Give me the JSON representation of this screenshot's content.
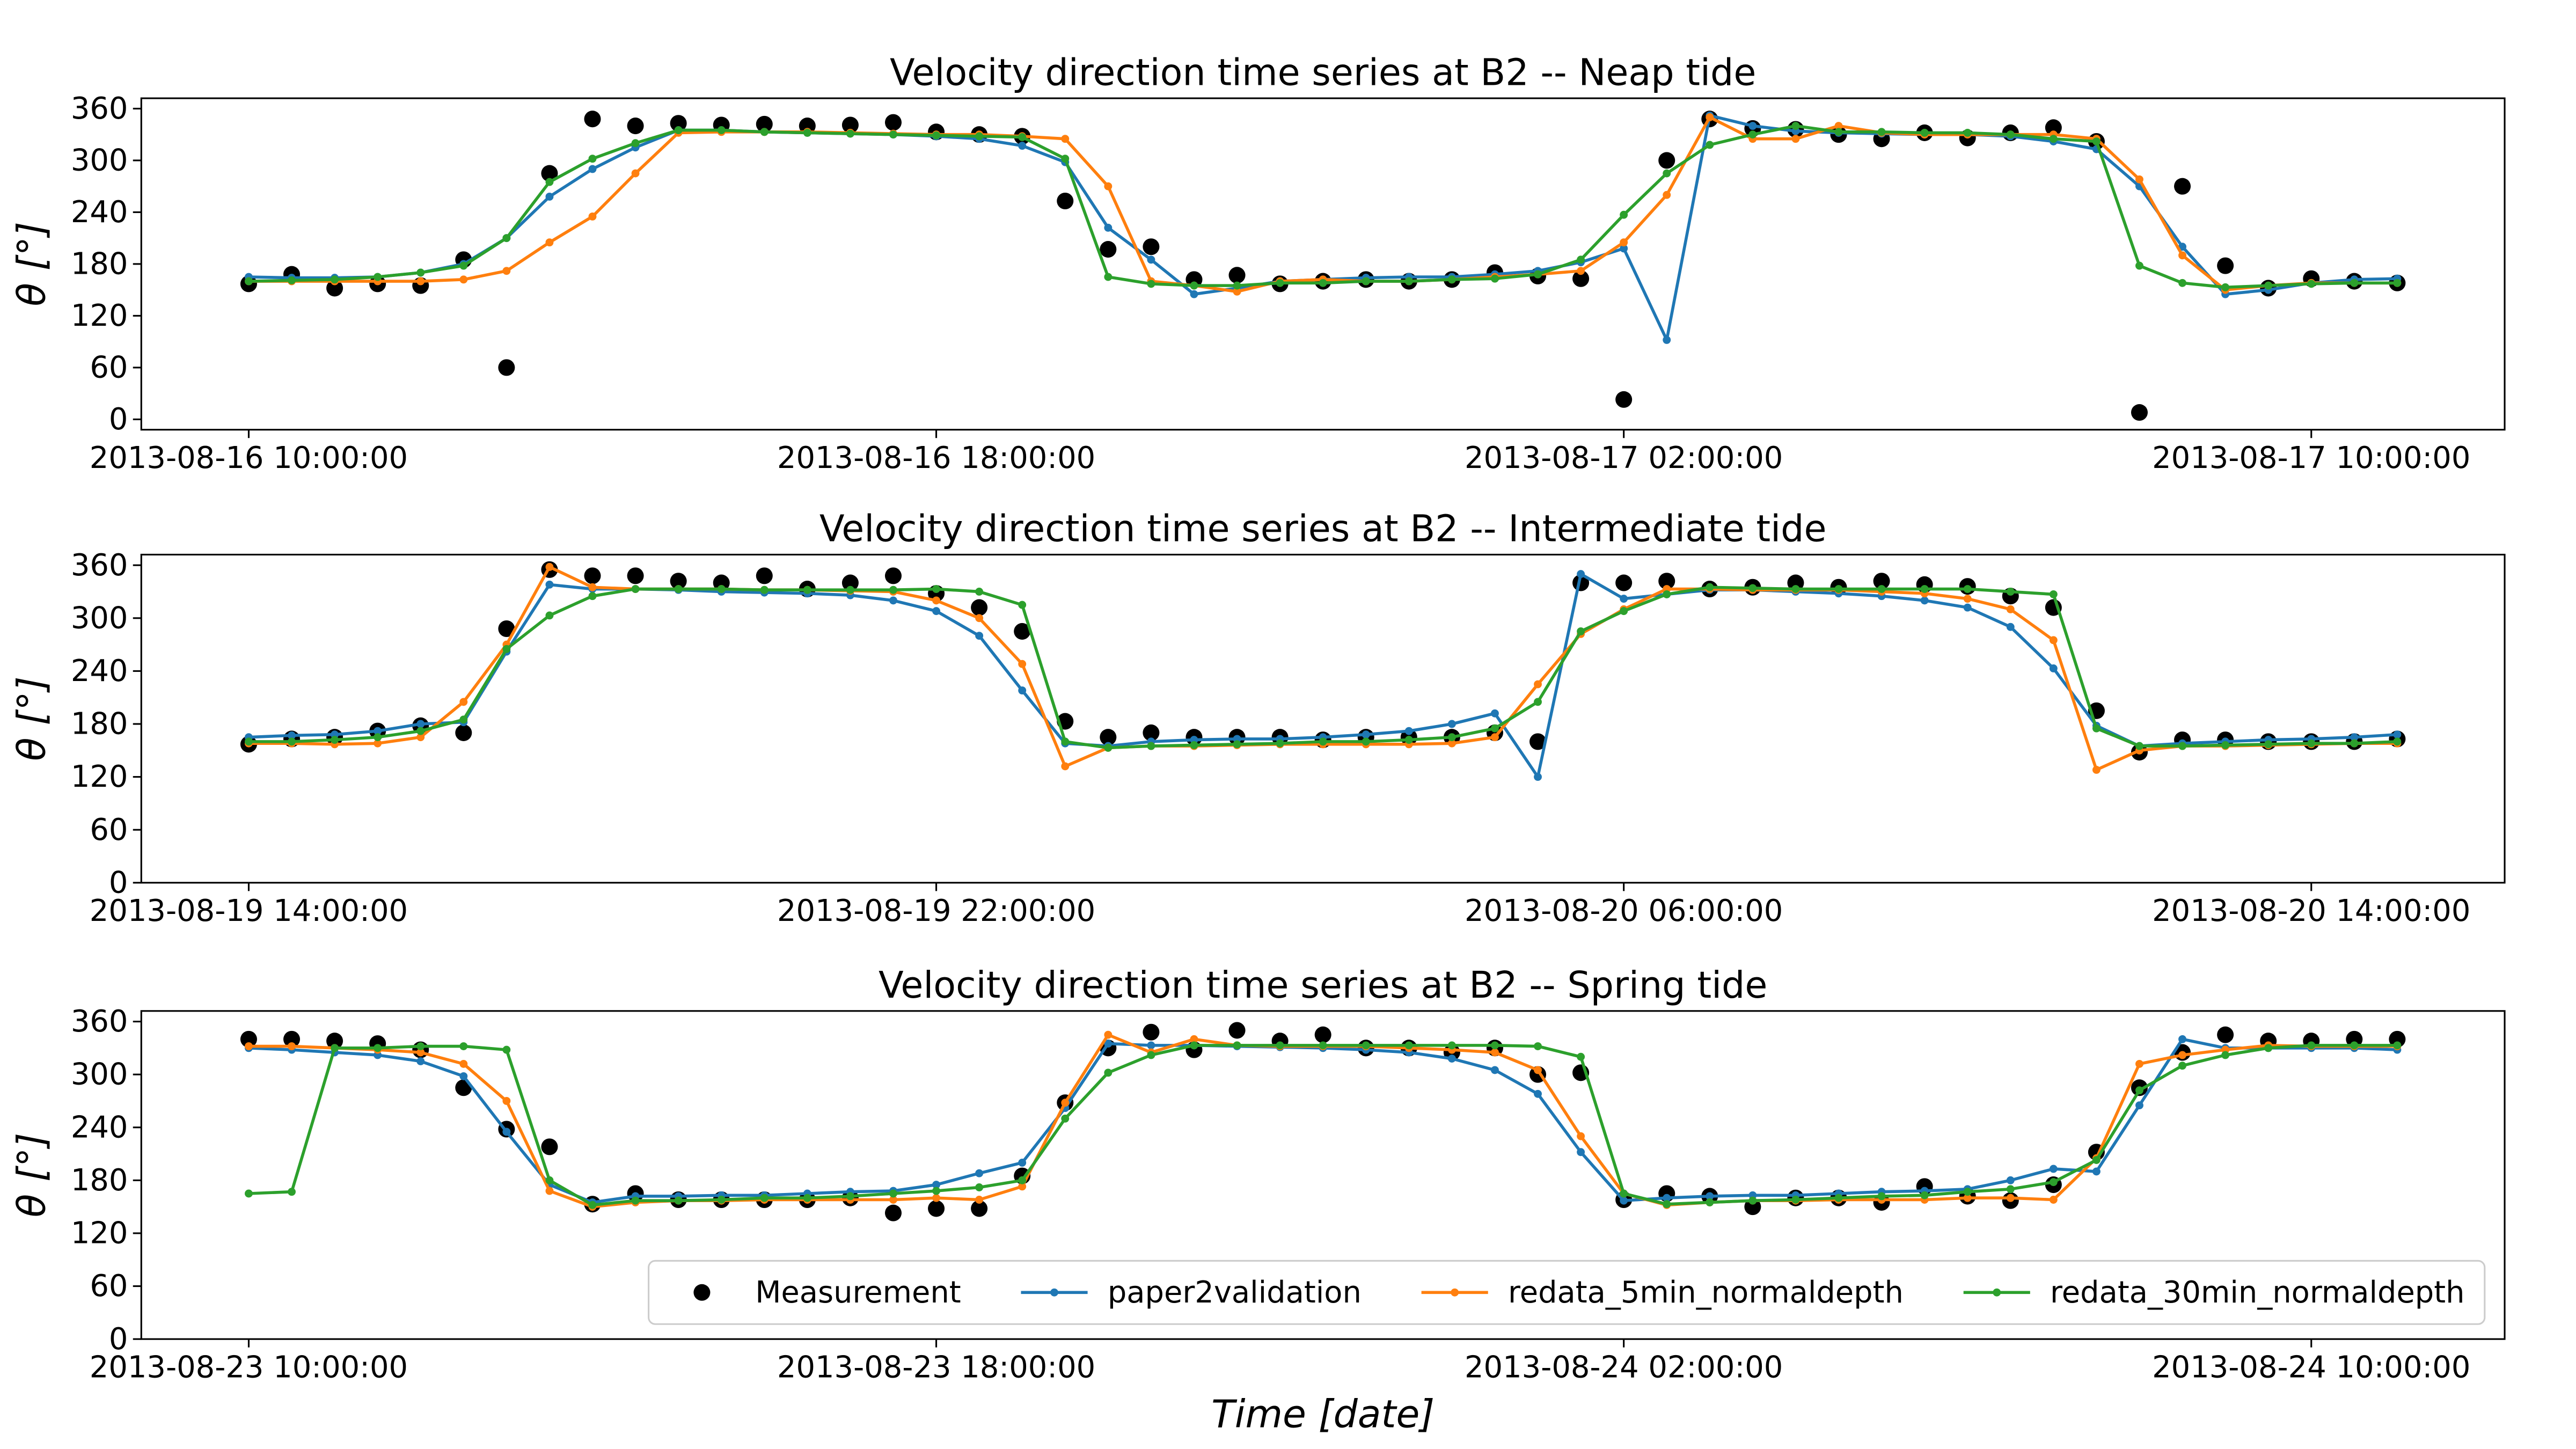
{
  "chart_data": [
    {
      "type": "line",
      "title": "Velocity direction time series at B2 -- Neap tide",
      "ylabel": "θ [°]",
      "xlim": [
        "2013-08-16 08:45:00",
        "2013-08-17 12:15:00"
      ],
      "xticks": [
        "2013-08-16 10:00:00",
        "2013-08-16 18:00:00",
        "2013-08-17 02:00:00",
        "2013-08-17 10:00:00"
      ],
      "ylim": [
        -12,
        372
      ],
      "yticks": [
        0,
        60,
        120,
        180,
        240,
        300,
        360
      ],
      "x": [
        "2013-08-16 10:00:00",
        "2013-08-16 10:30:00",
        "2013-08-16 11:00:00",
        "2013-08-16 11:30:00",
        "2013-08-16 12:00:00",
        "2013-08-16 12:30:00",
        "2013-08-16 13:00:00",
        "2013-08-16 13:30:00",
        "2013-08-16 14:00:00",
        "2013-08-16 14:30:00",
        "2013-08-16 15:00:00",
        "2013-08-16 15:30:00",
        "2013-08-16 16:00:00",
        "2013-08-16 16:30:00",
        "2013-08-16 17:00:00",
        "2013-08-16 17:30:00",
        "2013-08-16 18:00:00",
        "2013-08-16 18:30:00",
        "2013-08-16 19:00:00",
        "2013-08-16 19:30:00",
        "2013-08-16 20:00:00",
        "2013-08-16 20:30:00",
        "2013-08-16 21:00:00",
        "2013-08-16 21:30:00",
        "2013-08-16 22:00:00",
        "2013-08-16 22:30:00",
        "2013-08-16 23:00:00",
        "2013-08-16 23:30:00",
        "2013-08-17 00:00:00",
        "2013-08-17 00:30:00",
        "2013-08-17 01:00:00",
        "2013-08-17 01:30:00",
        "2013-08-17 02:00:00",
        "2013-08-17 02:30:00",
        "2013-08-17 03:00:00",
        "2013-08-17 03:30:00",
        "2013-08-17 04:00:00",
        "2013-08-17 04:30:00",
        "2013-08-17 05:00:00",
        "2013-08-17 05:30:00",
        "2013-08-17 06:00:00",
        "2013-08-17 06:30:00",
        "2013-08-17 07:00:00",
        "2013-08-17 07:30:00",
        "2013-08-17 08:00:00",
        "2013-08-17 08:30:00",
        "2013-08-17 09:00:00",
        "2013-08-17 09:30:00",
        "2013-08-17 10:00:00",
        "2013-08-17 10:30:00",
        "2013-08-17 11:00:00"
      ],
      "series": [
        {
          "name": "Measurement",
          "color": "#000000",
          "linestyle": "none",
          "values": [
            157,
            168,
            152,
            157,
            155,
            185,
            60,
            285,
            348,
            340,
            343,
            341,
            342,
            340,
            341,
            344,
            333,
            330,
            328,
            253,
            197,
            200,
            162,
            167,
            157,
            160,
            162,
            160,
            162,
            170,
            166,
            163,
            23,
            300,
            348,
            337,
            336,
            330,
            325,
            332,
            326,
            332,
            338,
            322,
            8,
            270,
            178,
            152,
            163,
            160,
            158
          ]
        },
        {
          "name": "paper2validation",
          "color": "#1f77b4",
          "linestyle": "solid",
          "values": [
            165,
            164,
            164,
            165,
            170,
            180,
            210,
            258,
            290,
            315,
            335,
            335,
            333,
            332,
            331,
            330,
            328,
            325,
            317,
            298,
            222,
            185,
            145,
            152,
            160,
            162,
            164,
            165,
            165,
            168,
            172,
            182,
            198,
            92,
            352,
            340,
            334,
            332,
            331,
            330,
            330,
            328,
            322,
            313,
            270,
            200,
            145,
            150,
            158,
            162,
            163
          ]
        },
        {
          "name": "redata_5min_normaldepth",
          "color": "#ff7f0e",
          "linestyle": "solid",
          "values": [
            160,
            160,
            160,
            160,
            160,
            162,
            172,
            205,
            235,
            285,
            332,
            333,
            333,
            333,
            332,
            331,
            330,
            330,
            328,
            325,
            270,
            160,
            155,
            148,
            160,
            162,
            160,
            160,
            162,
            165,
            168,
            172,
            205,
            260,
            350,
            325,
            325,
            340,
            332,
            330,
            330,
            330,
            330,
            325,
            278,
            190,
            150,
            155,
            158,
            158,
            158
          ]
        },
        {
          "name": "redata_30min_normaldepth",
          "color": "#2ca02c",
          "linestyle": "solid",
          "values": [
            160,
            161,
            162,
            165,
            170,
            178,
            210,
            275,
            302,
            320,
            335,
            335,
            333,
            332,
            331,
            330,
            329,
            328,
            327,
            302,
            165,
            157,
            155,
            155,
            158,
            158,
            160,
            160,
            162,
            163,
            168,
            185,
            237,
            285,
            318,
            330,
            340,
            333,
            333,
            332,
            332,
            330,
            325,
            322,
            178,
            158,
            153,
            155,
            157,
            158,
            158
          ]
        }
      ]
    },
    {
      "type": "line",
      "title": "Velocity direction time series at B2 -- Intermediate tide",
      "ylabel": "θ [°]",
      "xlim": [
        "2013-08-19 12:45:00",
        "2013-08-20 16:15:00"
      ],
      "xticks": [
        "2013-08-19 14:00:00",
        "2013-08-19 22:00:00",
        "2013-08-20 06:00:00",
        "2013-08-20 14:00:00"
      ],
      "ylim": [
        0,
        372
      ],
      "yticks": [
        0,
        60,
        120,
        180,
        240,
        300,
        360
      ],
      "x": [
        "2013-08-19 14:00:00",
        "2013-08-19 14:30:00",
        "2013-08-19 15:00:00",
        "2013-08-19 15:30:00",
        "2013-08-19 16:00:00",
        "2013-08-19 16:30:00",
        "2013-08-19 17:00:00",
        "2013-08-19 17:30:00",
        "2013-08-19 18:00:00",
        "2013-08-19 18:30:00",
        "2013-08-19 19:00:00",
        "2013-08-19 19:30:00",
        "2013-08-19 20:00:00",
        "2013-08-19 20:30:00",
        "2013-08-19 21:00:00",
        "2013-08-19 21:30:00",
        "2013-08-19 22:00:00",
        "2013-08-19 22:30:00",
        "2013-08-19 23:00:00",
        "2013-08-19 23:30:00",
        "2013-08-20 00:00:00",
        "2013-08-20 00:30:00",
        "2013-08-20 01:00:00",
        "2013-08-20 01:30:00",
        "2013-08-20 02:00:00",
        "2013-08-20 02:30:00",
        "2013-08-20 03:00:00",
        "2013-08-20 03:30:00",
        "2013-08-20 04:00:00",
        "2013-08-20 04:30:00",
        "2013-08-20 05:00:00",
        "2013-08-20 05:30:00",
        "2013-08-20 06:00:00",
        "2013-08-20 06:30:00",
        "2013-08-20 07:00:00",
        "2013-08-20 07:30:00",
        "2013-08-20 08:00:00",
        "2013-08-20 08:30:00",
        "2013-08-20 09:00:00",
        "2013-08-20 09:30:00",
        "2013-08-20 10:00:00",
        "2013-08-20 10:30:00",
        "2013-08-20 11:00:00",
        "2013-08-20 11:30:00",
        "2013-08-20 12:00:00",
        "2013-08-20 12:30:00",
        "2013-08-20 13:00:00",
        "2013-08-20 13:30:00",
        "2013-08-20 14:00:00",
        "2013-08-20 14:30:00",
        "2013-08-20 15:00:00"
      ],
      "series": [
        {
          "name": "Measurement",
          "color": "#000000",
          "linestyle": "none",
          "values": [
            157,
            163,
            165,
            172,
            178,
            170,
            288,
            355,
            348,
            348,
            342,
            340,
            348,
            333,
            340,
            348,
            328,
            312,
            285,
            183,
            165,
            170,
            165,
            165,
            165,
            162,
            165,
            165,
            165,
            170,
            160,
            340,
            340,
            342,
            333,
            335,
            340,
            335,
            342,
            338,
            336,
            325,
            312,
            195,
            148,
            162,
            162,
            160,
            160,
            160,
            163
          ]
        },
        {
          "name": "paper2validation",
          "color": "#1f77b4",
          "linestyle": "solid",
          "values": [
            165,
            167,
            168,
            172,
            180,
            182,
            262,
            338,
            333,
            333,
            332,
            330,
            329,
            328,
            326,
            320,
            308,
            280,
            218,
            158,
            155,
            160,
            162,
            163,
            163,
            165,
            168,
            172,
            180,
            192,
            120,
            350,
            322,
            327,
            332,
            332,
            330,
            328,
            325,
            320,
            312,
            290,
            243,
            178,
            155,
            158,
            160,
            162,
            163,
            165,
            168
          ]
        },
        {
          "name": "redata_5min_normaldepth",
          "color": "#ff7f0e",
          "linestyle": "solid",
          "values": [
            158,
            158,
            157,
            158,
            165,
            205,
            270,
            358,
            335,
            333,
            333,
            333,
            332,
            332,
            331,
            330,
            320,
            300,
            248,
            132,
            153,
            155,
            155,
            156,
            157,
            157,
            157,
            157,
            158,
            165,
            225,
            282,
            310,
            333,
            333,
            332,
            332,
            332,
            330,
            328,
            322,
            310,
            275,
            128,
            150,
            155,
            155,
            156,
            157,
            158,
            158
          ]
        },
        {
          "name": "redata_30min_normaldepth",
          "color": "#2ca02c",
          "linestyle": "solid",
          "values": [
            160,
            160,
            162,
            165,
            172,
            185,
            265,
            303,
            325,
            333,
            333,
            333,
            332,
            332,
            332,
            332,
            333,
            330,
            315,
            160,
            153,
            155,
            156,
            157,
            158,
            160,
            160,
            162,
            165,
            175,
            205,
            285,
            308,
            327,
            335,
            334,
            333,
            333,
            333,
            333,
            333,
            330,
            327,
            175,
            155,
            155,
            156,
            157,
            158,
            158,
            160
          ]
        }
      ]
    },
    {
      "type": "line",
      "title": "Velocity direction time series at B2 -- Spring tide",
      "ylabel": "θ [°]",
      "xlabel": "Time [date]",
      "legend": "lower right",
      "xlim": [
        "2013-08-23 08:45:00",
        "2013-08-24 12:15:00"
      ],
      "xticks": [
        "2013-08-23 10:00:00",
        "2013-08-23 18:00:00",
        "2013-08-24 02:00:00",
        "2013-08-24 10:00:00"
      ],
      "ylim": [
        0,
        372
      ],
      "yticks": [
        0,
        60,
        120,
        180,
        240,
        300,
        360
      ],
      "x": [
        "2013-08-23 10:00:00",
        "2013-08-23 10:30:00",
        "2013-08-23 11:00:00",
        "2013-08-23 11:30:00",
        "2013-08-23 12:00:00",
        "2013-08-23 12:30:00",
        "2013-08-23 13:00:00",
        "2013-08-23 13:30:00",
        "2013-08-23 14:00:00",
        "2013-08-23 14:30:00",
        "2013-08-23 15:00:00",
        "2013-08-23 15:30:00",
        "2013-08-23 16:00:00",
        "2013-08-23 16:30:00",
        "2013-08-23 17:00:00",
        "2013-08-23 17:30:00",
        "2013-08-23 18:00:00",
        "2013-08-23 18:30:00",
        "2013-08-23 19:00:00",
        "2013-08-23 19:30:00",
        "2013-08-23 20:00:00",
        "2013-08-23 20:30:00",
        "2013-08-23 21:00:00",
        "2013-08-23 21:30:00",
        "2013-08-23 22:00:00",
        "2013-08-23 22:30:00",
        "2013-08-23 23:00:00",
        "2013-08-23 23:30:00",
        "2013-08-24 00:00:00",
        "2013-08-24 00:30:00",
        "2013-08-24 01:00:00",
        "2013-08-24 01:30:00",
        "2013-08-24 02:00:00",
        "2013-08-24 02:30:00",
        "2013-08-24 03:00:00",
        "2013-08-24 03:30:00",
        "2013-08-24 04:00:00",
        "2013-08-24 04:30:00",
        "2013-08-24 05:00:00",
        "2013-08-24 05:30:00",
        "2013-08-24 06:00:00",
        "2013-08-24 06:30:00",
        "2013-08-24 07:00:00",
        "2013-08-24 07:30:00",
        "2013-08-24 08:00:00",
        "2013-08-24 08:30:00",
        "2013-08-24 09:00:00",
        "2013-08-24 09:30:00",
        "2013-08-24 10:00:00",
        "2013-08-24 10:30:00",
        "2013-08-24 11:00:00"
      ],
      "series": [
        {
          "name": "Measurement",
          "color": "#000000",
          "linestyle": "none",
          "values": [
            340,
            340,
            338,
            335,
            328,
            285,
            238,
            218,
            153,
            165,
            158,
            158,
            158,
            158,
            160,
            143,
            148,
            148,
            185,
            268,
            330,
            348,
            328,
            350,
            338,
            345,
            330,
            330,
            325,
            330,
            300,
            302,
            158,
            165,
            162,
            150,
            160,
            160,
            155,
            173,
            162,
            157,
            175,
            212,
            285,
            325,
            345,
            338,
            338,
            340,
            340
          ]
        },
        {
          "name": "paper2validation",
          "color": "#1f77b4",
          "linestyle": "solid",
          "values": [
            330,
            328,
            325,
            322,
            315,
            298,
            235,
            175,
            155,
            162,
            162,
            163,
            163,
            165,
            167,
            168,
            175,
            188,
            200,
            262,
            335,
            333,
            333,
            332,
            331,
            330,
            328,
            325,
            318,
            305,
            278,
            212,
            157,
            160,
            162,
            163,
            163,
            165,
            167,
            168,
            170,
            180,
            193,
            190,
            265,
            340,
            330,
            330,
            330,
            330,
            328
          ]
        },
        {
          "name": "redata_5min_normaldepth",
          "color": "#ff7f0e",
          "linestyle": "solid",
          "values": [
            332,
            332,
            330,
            328,
            325,
            312,
            270,
            168,
            150,
            155,
            157,
            157,
            158,
            158,
            158,
            158,
            160,
            158,
            173,
            268,
            345,
            325,
            340,
            333,
            332,
            332,
            332,
            330,
            328,
            325,
            305,
            230,
            165,
            152,
            155,
            157,
            157,
            158,
            158,
            158,
            160,
            160,
            158,
            205,
            312,
            322,
            328,
            333,
            332,
            332,
            332
          ]
        },
        {
          "name": "redata_30min_normaldepth",
          "color": "#2ca02c",
          "linestyle": "solid",
          "values": [
            165,
            167,
            330,
            330,
            332,
            332,
            328,
            180,
            152,
            157,
            157,
            158,
            160,
            160,
            162,
            165,
            168,
            172,
            180,
            250,
            302,
            322,
            333,
            333,
            333,
            333,
            333,
            333,
            333,
            333,
            332,
            320,
            165,
            153,
            155,
            157,
            158,
            160,
            162,
            163,
            167,
            170,
            178,
            203,
            282,
            310,
            322,
            330,
            333,
            333,
            333
          ]
        }
      ]
    }
  ]
}
